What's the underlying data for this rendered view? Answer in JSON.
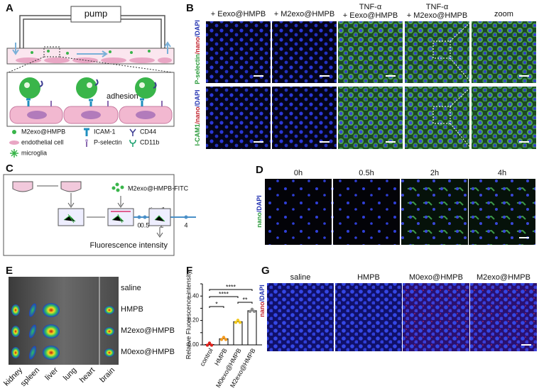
{
  "panels": {
    "A": {
      "label": "A",
      "pump": "pump",
      "adhesion": "adhesion",
      "legend": [
        "M2exo@HMPB",
        "ICAM-1",
        "CD44",
        "endothelial cell",
        "P-selectin",
        "CD11b",
        "microglia"
      ]
    },
    "B": {
      "label": "B",
      "columns": [
        [
          "+ Eexo@HMPB"
        ],
        [
          "+ M2exo@HMPB"
        ],
        [
          "TNF-α",
          "+ Eexo@HMPB"
        ],
        [
          "TNF-α",
          "+ M2exo@HMPB"
        ],
        [
          "zoom"
        ]
      ],
      "rows": [
        [
          "P-selectin",
          "/nano",
          "/DAPI"
        ],
        [
          "I-CAM1",
          "/nano",
          "/DAPI"
        ]
      ]
    },
    "C": {
      "label": "C",
      "reagent": "M2exo@HMPB-FITC",
      "time_axis": "time/h",
      "times": [
        "0",
        "0.5",
        "2",
        "4"
      ],
      "readout": "Fluorescence intensity"
    },
    "D": {
      "label": "D",
      "columns": [
        "0h",
        "0.5h",
        "2h",
        "4h"
      ],
      "row": [
        "nano",
        "/DAPI"
      ]
    },
    "E": {
      "label": "E",
      "groups": [
        "saline",
        "HMPB",
        "M2exo@HMPB",
        "M0exo@HMPB"
      ],
      "organs": [
        "kidney",
        "spleen",
        "liver",
        "lung",
        "heart",
        "brain"
      ]
    },
    "G": {
      "label": "G",
      "columns": [
        "saline",
        "HMPB",
        "M0exo@HMPB",
        "M2exo@HMPB"
      ],
      "row": [
        "nano",
        "/DAPI"
      ]
    }
  },
  "chart_data": {
    "type": "bar",
    "label": "F",
    "ylabel": "Relative Fluorescence intensity",
    "categories": [
      "control",
      "HMPB",
      "M0exo@HMPB",
      "M2exo@HMPB"
    ],
    "values": [
      0.003,
      0.05,
      0.19,
      0.28
    ],
    "colors": [
      "#e0201b",
      "#f39a1e",
      "#f2c81a",
      "#8c8c8c"
    ],
    "ylim": [
      0,
      0.5
    ],
    "yticks": [
      {
        "value": 0,
        "label": "0.00"
      },
      {
        "value": 0.1,
        "label": "0.10"
      },
      {
        "value": 0.2,
        "label": "0.20"
      },
      {
        "value": 0.3,
        "label": "0.30"
      },
      {
        "value": 0.4,
        "label": "0.40"
      },
      {
        "value": 0.5,
        "label": "0.50"
      }
    ],
    "significance": [
      "*",
      "****",
      "****",
      "**"
    ]
  }
}
